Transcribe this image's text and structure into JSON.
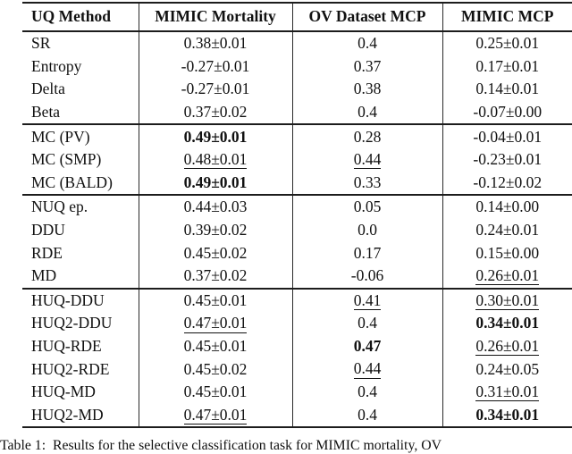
{
  "colors": {
    "text": "#111111",
    "rule": "#1c1c1c",
    "background": "#ffffff"
  },
  "table": {
    "headers": [
      "UQ Method",
      "MIMIC Mortality",
      "OV Dataset MCP",
      "MIMIC MCP"
    ],
    "groups": [
      {
        "rows": [
          {
            "method": "SR",
            "values": [
              {
                "text": "0.38±0.01",
                "style": "plain"
              },
              {
                "text": "0.4",
                "style": "plain"
              },
              {
                "text": "0.25±0.01",
                "style": "plain"
              }
            ]
          },
          {
            "method": "Entropy",
            "values": [
              {
                "text": "-0.27±0.01",
                "style": "plain"
              },
              {
                "text": "0.37",
                "style": "plain"
              },
              {
                "text": "0.17±0.01",
                "style": "plain"
              }
            ]
          },
          {
            "method": "Delta",
            "values": [
              {
                "text": "-0.27±0.01",
                "style": "plain"
              },
              {
                "text": "0.38",
                "style": "plain"
              },
              {
                "text": "0.14±0.01",
                "style": "plain"
              }
            ]
          },
          {
            "method": "Beta",
            "values": [
              {
                "text": "0.37±0.02",
                "style": "plain"
              },
              {
                "text": "0.4",
                "style": "plain"
              },
              {
                "text": "-0.07±0.00",
                "style": "plain"
              }
            ]
          }
        ]
      },
      {
        "rows": [
          {
            "method": "MC (PV)",
            "values": [
              {
                "text": "0.49±0.01",
                "style": "bold"
              },
              {
                "text": "0.28",
                "style": "plain"
              },
              {
                "text": "-0.04±0.01",
                "style": "plain"
              }
            ]
          },
          {
            "method": "MC (SMP)",
            "values": [
              {
                "text": "0.48±0.01",
                "style": "underline"
              },
              {
                "text": "0.44",
                "style": "underline"
              },
              {
                "text": "-0.23±0.01",
                "style": "plain"
              }
            ]
          },
          {
            "method": "MC (BALD)",
            "values": [
              {
                "text": "0.49±0.01",
                "style": "bold"
              },
              {
                "text": "0.33",
                "style": "plain"
              },
              {
                "text": "-0.12±0.02",
                "style": "plain"
              }
            ]
          }
        ]
      },
      {
        "rows": [
          {
            "method": "NUQ ep.",
            "values": [
              {
                "text": "0.44±0.03",
                "style": "plain"
              },
              {
                "text": "0.05",
                "style": "plain"
              },
              {
                "text": "0.14±0.00",
                "style": "plain"
              }
            ]
          },
          {
            "method": "DDU",
            "values": [
              {
                "text": "0.39±0.02",
                "style": "plain"
              },
              {
                "text": "0.0",
                "style": "plain"
              },
              {
                "text": "0.24±0.01",
                "style": "plain"
              }
            ]
          },
          {
            "method": "RDE",
            "values": [
              {
                "text": "0.45±0.02",
                "style": "plain"
              },
              {
                "text": "0.17",
                "style": "plain"
              },
              {
                "text": "0.15±0.00",
                "style": "plain"
              }
            ]
          },
          {
            "method": "MD",
            "values": [
              {
                "text": "0.37±0.02",
                "style": "plain"
              },
              {
                "text": "-0.06",
                "style": "plain"
              },
              {
                "text": "0.26±0.01",
                "style": "underline"
              }
            ]
          }
        ]
      },
      {
        "rows": [
          {
            "method": "HUQ-DDU",
            "values": [
              {
                "text": "0.45±0.01",
                "style": "plain"
              },
              {
                "text": "0.41",
                "style": "underline"
              },
              {
                "text": "0.30±0.01",
                "style": "underline"
              }
            ]
          },
          {
            "method": "HUQ2-DDU",
            "values": [
              {
                "text": "0.47±0.01",
                "style": "underline"
              },
              {
                "text": "0.4",
                "style": "plain"
              },
              {
                "text": "0.34±0.01",
                "style": "bold"
              }
            ]
          },
          {
            "method": "HUQ-RDE",
            "values": [
              {
                "text": "0.45±0.01",
                "style": "plain"
              },
              {
                "text": "0.47",
                "style": "bold"
              },
              {
                "text": "0.26±0.01",
                "style": "underline"
              }
            ]
          },
          {
            "method": "HUQ2-RDE",
            "values": [
              {
                "text": "0.45±0.02",
                "style": "plain"
              },
              {
                "text": "0.44",
                "style": "underline"
              },
              {
                "text": "0.24±0.05",
                "style": "plain"
              }
            ]
          },
          {
            "method": "HUQ-MD",
            "values": [
              {
                "text": "0.45±0.01",
                "style": "plain"
              },
              {
                "text": "0.4",
                "style": "plain"
              },
              {
                "text": "0.31±0.01",
                "style": "underline"
              }
            ]
          },
          {
            "method": "HUQ2-MD",
            "values": [
              {
                "text": "0.47±0.01",
                "style": "underline"
              },
              {
                "text": "0.4",
                "style": "plain"
              },
              {
                "text": "0.34±0.01",
                "style": "bold"
              }
            ]
          }
        ]
      }
    ]
  },
  "caption": "Table 1:  Results for the selective classification task for MIMIC mortality, OV"
}
